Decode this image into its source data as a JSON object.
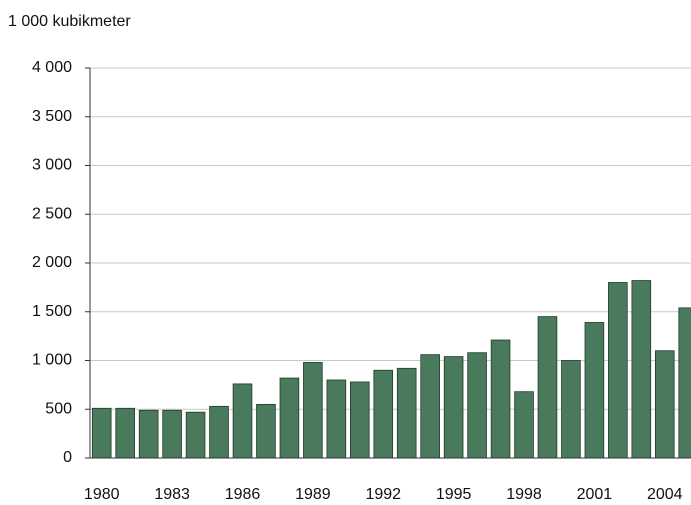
{
  "chart_data": {
    "type": "bar",
    "y_label": "1 000 kubikmeter",
    "categories": [
      "1980",
      null,
      null,
      "1983",
      null,
      null,
      "1986",
      null,
      null,
      "1989",
      null,
      null,
      "1992",
      null,
      null,
      "1995",
      null,
      null,
      "1998",
      null,
      null,
      "2001",
      null,
      null,
      "2004",
      null
    ],
    "values": [
      510,
      510,
      490,
      490,
      470,
      530,
      760,
      550,
      820,
      980,
      800,
      780,
      900,
      920,
      1060,
      1040,
      1080,
      1210,
      680,
      1450,
      1000,
      1390,
      1800,
      1820,
      1100,
      1540
    ],
    "color": "#4a7a5c",
    "ylim": [
      0,
      4000
    ],
    "yticks": [
      0,
      500,
      {
        "value": 1000,
        "label": "1 000"
      },
      {
        "value": 1500,
        "label": "1 500"
      },
      {
        "value": 2000,
        "label": "2 000"
      },
      {
        "value": 2500,
        "label": "2 500"
      },
      {
        "value": 3000,
        "label": "3 000"
      },
      {
        "value": 3500,
        "label": "3 500"
      },
      {
        "value": 4000,
        "label": "4 000"
      }
    ],
    "grid": true
  }
}
